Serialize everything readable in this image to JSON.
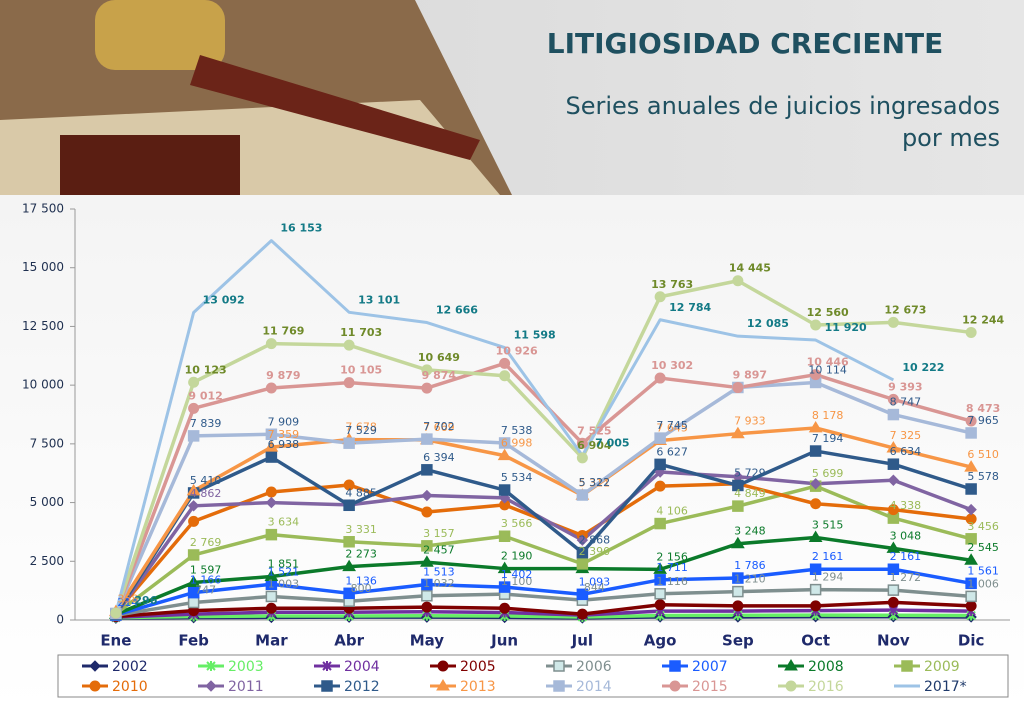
{
  "title": "LITIGIOSIDAD CRECIENTE",
  "subtitle": [
    "Series anuales de juicios ingresados",
    "por mes"
  ],
  "chart_data": {
    "type": "line",
    "categories": [
      "Ene",
      "Feb",
      "Mar",
      "Abr",
      "May",
      "Jun",
      "Jul",
      "Ago",
      "Sep",
      "Oct",
      "Nov",
      "Dic"
    ],
    "ylim": [
      0,
      17500
    ],
    "yticks": [
      0,
      {
        "value": 2500,
        "label": "2 500"
      },
      {
        "value": 5000,
        "label": "5 000"
      },
      {
        "value": 7500,
        "label": "7 500"
      },
      {
        "value": 10000,
        "label": "10 000"
      },
      {
        "value": 12500,
        "label": "12 500"
      },
      {
        "value": 15000,
        "label": "15 000"
      },
      {
        "value": 17500,
        "label": "17 500"
      }
    ],
    "series": [
      {
        "name": "2002",
        "color": "#1f2a6b",
        "marker": "diamond",
        "values": [
          80,
          100,
          110,
          120,
          120,
          110,
          90,
          130,
          130,
          140,
          140,
          130
        ]
      },
      {
        "name": "2003",
        "color": "#66ee66",
        "marker": "star",
        "values": [
          100,
          150,
          170,
          170,
          180,
          170,
          130,
          190,
          200,
          210,
          200,
          190
        ]
      },
      {
        "name": "2004",
        "color": "#7030a0",
        "marker": "star",
        "values": [
          120,
          250,
          330,
          330,
          350,
          320,
          210,
          380,
          380,
          400,
          420,
          380
        ]
      },
      {
        "name": "2005",
        "color": "#7f0000",
        "marker": "circle",
        "values": [
          150,
          400,
          500,
          500,
          550,
          500,
          250,
          650,
          600,
          600,
          750,
          600
        ]
      },
      {
        "name": "2006",
        "color": "#7f8f8f",
        "marker": "square",
        "values": [
          200,
          747,
          1003,
          800,
          1032,
          1100,
          844,
          1116,
          1210,
          1294,
          1272,
          1006
        ],
        "value_labels": [
          null,
          "747",
          "1 003",
          "800",
          "1 032",
          "1 100",
          "844",
          "1 116",
          "1 210",
          "1 294",
          "1 272",
          "1 006"
        ]
      },
      {
        "name": "2007",
        "color": "#1a5cff",
        "marker": "square",
        "values": [
          214,
          1166,
          1521,
          1136,
          1513,
          1402,
          1093,
          1711,
          1786,
          2161,
          2161,
          1561
        ],
        "value_labels": [
          "214",
          "1 166",
          "1 521",
          "1 136",
          "1 513",
          "1 402",
          "1 093",
          "1 711",
          "1 786",
          "2 161",
          "2 161",
          "1 561"
        ]
      },
      {
        "name": "2008",
        "color": "#0b7a2a",
        "marker": "triangle",
        "values": [
          240,
          1597,
          1851,
          2273,
          2457,
          2190,
          2190,
          2156,
          3248,
          3515,
          3048,
          2545
        ],
        "value_labels": [
          null,
          "1 597",
          "1 851",
          "2 273",
          "2 457",
          "2 190",
          null,
          "2 156",
          "3 248",
          "3 515",
          "3 048",
          "2 545"
        ]
      },
      {
        "name": "2009",
        "color": "#9bbb59",
        "marker": "square",
        "values": [
          260,
          2769,
          3634,
          3331,
          3157,
          3566,
          2390,
          4106,
          4849,
          5699,
          4338,
          3456
        ],
        "value_labels": [
          null,
          "2 769",
          "3 634",
          "3 331",
          "3 157",
          "3 566",
          "2 390",
          "4 106",
          "4 849",
          "5 699",
          "4 338",
          "3 456"
        ]
      },
      {
        "name": "2010",
        "color": "#e46c0a",
        "marker": "circle",
        "values": [
          300,
          4200,
          5450,
          5750,
          4600,
          4900,
          3600,
          5700,
          5800,
          4950,
          4700,
          4300
        ]
      },
      {
        "name": "2011",
        "color": "#8064a2",
        "marker": "diamond",
        "values": [
          230,
          4862,
          5000,
          4900,
          5300,
          5200,
          3400,
          6300,
          6100,
          5800,
          5950,
          4700
        ],
        "value_labels": [
          null,
          "4 862",
          null,
          null,
          null,
          null,
          null,
          null,
          null,
          null,
          null,
          null
        ]
      },
      {
        "name": "2012",
        "color": "#2f5a8a",
        "marker": "square",
        "values": [
          250,
          5410,
          6938,
          4885,
          6394,
          5534,
          2868,
          6627,
          5729,
          7194,
          6634,
          5578
        ],
        "value_labels": [
          null,
          "5 410",
          "6 938",
          "4 885",
          "6 394",
          "5 534",
          "2 868",
          "6 627",
          "5 729",
          "7 194",
          "6 634",
          "5 578"
        ]
      },
      {
        "name": "2013",
        "color": "#f79646",
        "marker": "triangle",
        "values": [
          358,
          5500,
          7359,
          7678,
          7669,
          6998,
          5311,
          7645,
          7933,
          8178,
          7325,
          6510
        ],
        "value_labels": [
          "358",
          null,
          "7 359",
          "7 678",
          "7 669",
          "6 998",
          "5 311",
          "7 645",
          "7 933",
          "8 178",
          "7 325",
          "6 510"
        ]
      },
      {
        "name": "2014",
        "color": "#a6b9d9",
        "marker": "square",
        "values": [
          280,
          7839,
          7909,
          7529,
          7702,
          7538,
          5322,
          7745,
          9900,
          10114,
          8747,
          7965
        ],
        "value_labels": [
          null,
          "7 839",
          "7 909",
          "7 529",
          "7 702",
          "7 538",
          "5 322",
          "7 745",
          null,
          "10 114",
          "8 747",
          "7 965"
        ]
      },
      {
        "name": "2015",
        "color": "#d99694",
        "marker": "circle",
        "values": [
          290,
          9012,
          9879,
          10105,
          9874,
          10926,
          7525,
          10302,
          9897,
          10446,
          9393,
          8473
        ],
        "value_labels": [
          null,
          "9 012",
          "9 879",
          "10 105",
          "9 874",
          "10 926",
          "7 525",
          "10 302",
          "9 897",
          "10 446",
          "9 393",
          "8 473"
        ]
      },
      {
        "name": "2016",
        "color": "#c4d79b",
        "marker": "circle",
        "values": [
          300,
          10123,
          11769,
          11703,
          10649,
          10400,
          6904,
          13763,
          14445,
          12560,
          12673,
          12244
        ],
        "value_labels": [
          null,
          "10 123",
          "11 769",
          "11 703",
          "10 649",
          null,
          "6 904",
          "13 763",
          "14 445",
          "12 560",
          "12 673",
          "12 244"
        ]
      },
      {
        "name": "2017*",
        "color": "#9dc3e6",
        "marker": "none",
        "values": [
          296,
          13092,
          16153,
          13101,
          12666,
          11598,
          7005,
          12784,
          12085,
          11920,
          10222,
          null
        ],
        "value_labels": [
          "296",
          "13 092",
          "16 153",
          "13 101",
          "12 666",
          "11 598",
          "7 005",
          "12 784",
          "12 085",
          "11 920",
          "10 222",
          null
        ]
      }
    ]
  }
}
